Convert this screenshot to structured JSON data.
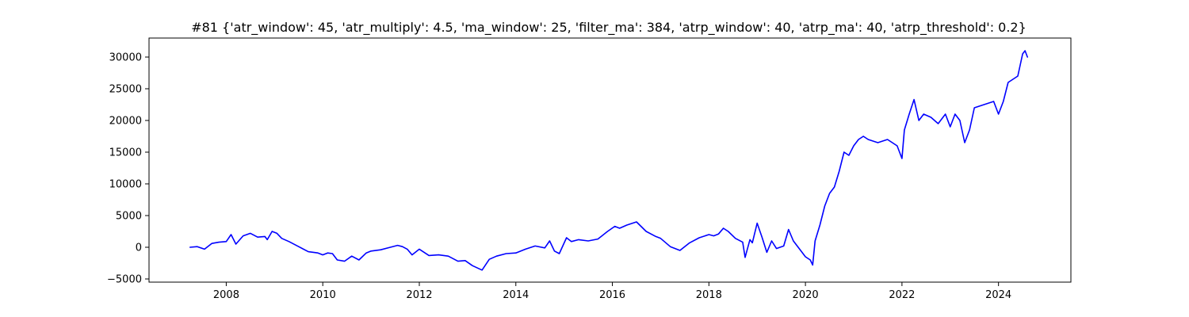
{
  "chart_data": {
    "type": "line",
    "title": "#81 {'atr_window': 45, 'atr_multiply': 4.5, 'ma_window': 25, 'filter_ma': 384, 'atrp_window': 40, 'atrp_ma': 40, 'atrp_threshold': 0.2}",
    "xlabel": "",
    "ylabel": "",
    "xlim": [
      2006.4,
      2025.5
    ],
    "ylim": [
      -5500,
      33000
    ],
    "x_ticks": [
      2008,
      2010,
      2012,
      2014,
      2016,
      2018,
      2020,
      2022,
      2024
    ],
    "x_tick_labels": [
      "2008",
      "2010",
      "2012",
      "2014",
      "2016",
      "2018",
      "2020",
      "2022",
      "2024"
    ],
    "y_ticks": [
      -5000,
      0,
      5000,
      10000,
      15000,
      20000,
      25000,
      30000
    ],
    "y_tick_labels": [
      "−5000",
      "0",
      "5000",
      "10000",
      "15000",
      "20000",
      "25000",
      "30000"
    ],
    "grid": false,
    "legend": "none",
    "series": [
      {
        "color": "#0000ff",
        "x": [
          2007.25,
          2007.4,
          2007.55,
          2007.7,
          2007.85,
          2008.0,
          2008.1,
          2008.2,
          2008.35,
          2008.5,
          2008.65,
          2008.8,
          2008.85,
          2008.95,
          2009.05,
          2009.15,
          2009.3,
          2009.5,
          2009.7,
          2009.9,
          2010.0,
          2010.1,
          2010.2,
          2010.3,
          2010.45,
          2010.6,
          2010.75,
          2010.9,
          2011.0,
          2011.2,
          2011.4,
          2011.55,
          2011.65,
          2011.75,
          2011.85,
          2012.0,
          2012.2,
          2012.4,
          2012.6,
          2012.8,
          2012.95,
          2013.1,
          2013.3,
          2013.45,
          2013.6,
          2013.8,
          2014.0,
          2014.2,
          2014.4,
          2014.6,
          2014.7,
          2014.8,
          2014.9,
          2015.05,
          2015.15,
          2015.3,
          2015.5,
          2015.7,
          2015.9,
          2016.05,
          2016.15,
          2016.3,
          2016.5,
          2016.7,
          2016.9,
          2017.0,
          2017.2,
          2017.4,
          2017.6,
          2017.8,
          2018.0,
          2018.1,
          2018.2,
          2018.3,
          2018.4,
          2018.55,
          2018.7,
          2018.75,
          2018.85,
          2018.9,
          2019.0,
          2019.1,
          2019.2,
          2019.3,
          2019.4,
          2019.55,
          2019.65,
          2019.75,
          2019.9,
          2020.0,
          2020.1,
          2020.15,
          2020.2,
          2020.3,
          2020.4,
          2020.5,
          2020.6,
          2020.7,
          2020.8,
          2020.9,
          2021.0,
          2021.1,
          2021.2,
          2021.3,
          2021.5,
          2021.7,
          2021.9,
          2022.0,
          2022.05,
          2022.15,
          2022.25,
          2022.35,
          2022.45,
          2022.6,
          2022.75,
          2022.9,
          2023.0,
          2023.1,
          2023.2,
          2023.3,
          2023.4,
          2023.5,
          2023.7,
          2023.9,
          2024.0,
          2024.1,
          2024.2,
          2024.3,
          2024.4,
          2024.5,
          2024.55,
          2024.6
        ],
        "y": [
          0,
          100,
          -300,
          600,
          800,
          900,
          2000,
          500,
          1800,
          2200,
          1600,
          1700,
          1200,
          2500,
          2200,
          1400,
          900,
          100,
          -700,
          -900,
          -1200,
          -900,
          -1000,
          -2000,
          -2200,
          -1400,
          -2000,
          -900,
          -600,
          -400,
          0,
          300,
          100,
          -300,
          -1200,
          -300,
          -1300,
          -1200,
          -1400,
          -2200,
          -2100,
          -2900,
          -3600,
          -1900,
          -1400,
          -1000,
          -900,
          -300,
          200,
          -100,
          1000,
          -600,
          -1000,
          1500,
          900,
          1200,
          1000,
          1300,
          2500,
          3300,
          3000,
          3500,
          4000,
          2500,
          1700,
          1400,
          100,
          -500,
          700,
          1500,
          2000,
          1800,
          2100,
          3000,
          2500,
          1400,
          800,
          -1600,
          1200,
          700,
          3800,
          1600,
          -800,
          1000,
          -200,
          200,
          2800,
          1000,
          -500,
          -1500,
          -2000,
          -2800,
          1000,
          3500,
          6500,
          8500,
          9500,
          12000,
          15000,
          14500,
          16000,
          17000,
          17500,
          17000,
          16500,
          17000,
          16000,
          14000,
          18500,
          21000,
          23300,
          20000,
          21000,
          20500,
          19500,
          21000,
          19000,
          21000,
          20000,
          16500,
          18500,
          22000,
          22500,
          23000,
          21000,
          23000,
          26000,
          26500,
          27000,
          30500,
          31000,
          30000
        ]
      }
    ]
  }
}
